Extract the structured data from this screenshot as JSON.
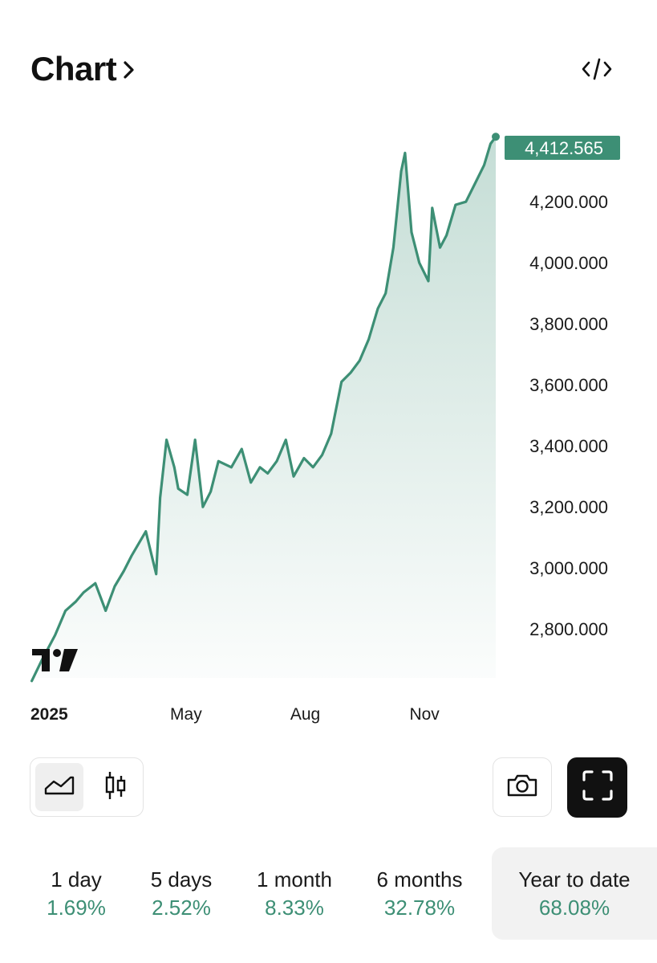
{
  "header": {
    "title": "Chart"
  },
  "icons": {
    "title_chevron": "chevron-right-icon",
    "embed": "code-embed-icon",
    "logo": "tradingview-logo",
    "area_chart": "area-chart-icon",
    "candlestick": "candlestick-icon",
    "camera": "camera-icon",
    "fullscreen": "fullscreen-icon"
  },
  "colors": {
    "line": "#3d8f75",
    "fill": "#3d8f75",
    "price_tag": "#3d8f75",
    "positive": "#3d8f75",
    "fullscreen_bg": "#111111"
  },
  "chart_data": {
    "type": "area",
    "x_tick_labels": [
      "2025",
      "May",
      "Aug",
      "Nov"
    ],
    "y_tick_labels": [
      "4,200.000",
      "4,000.000",
      "3,800.000",
      "3,600.000",
      "3,400.000",
      "3,200.000",
      "3,000.000",
      "2,800.000"
    ],
    "y_ticks": [
      4200,
      4000,
      3800,
      3600,
      3400,
      3200,
      3000,
      2800
    ],
    "ylim": [
      2640,
      4440
    ],
    "last_value_label": "4,412.565",
    "series": [
      {
        "x": [
          "2025-01-02",
          "2025-01-10",
          "2025-01-20",
          "2025-01-28",
          "2025-02-05",
          "2025-02-11",
          "2025-02-20",
          "2025-02-28",
          "2025-03-07",
          "2025-03-14",
          "2025-03-20",
          "2025-03-31",
          "2025-04-08",
          "2025-04-11",
          "2025-04-16",
          "2025-04-22",
          "2025-04-25",
          "2025-05-02",
          "2025-05-08",
          "2025-05-14",
          "2025-05-20",
          "2025-05-26",
          "2025-06-05",
          "2025-06-13",
          "2025-06-20",
          "2025-06-27",
          "2025-07-03",
          "2025-07-10",
          "2025-07-17",
          "2025-07-23",
          "2025-07-31",
          "2025-08-07",
          "2025-08-14",
          "2025-08-21",
          "2025-08-29",
          "2025-09-05",
          "2025-09-12",
          "2025-09-19",
          "2025-09-26",
          "2025-10-02",
          "2025-10-08",
          "2025-10-14",
          "2025-10-17",
          "2025-10-22",
          "2025-10-28",
          "2025-11-04",
          "2025-11-07",
          "2025-11-13",
          "2025-11-18",
          "2025-11-25",
          "2025-12-03",
          "2025-12-10",
          "2025-12-17",
          "2025-12-22",
          "2025-12-26"
        ],
        "y": [
          2630,
          2700,
          2780,
          2860,
          2890,
          2920,
          2950,
          2860,
          2940,
          2990,
          3040,
          3120,
          2980,
          3230,
          3420,
          3330,
          3260,
          3240,
          3420,
          3200,
          3250,
          3350,
          3330,
          3390,
          3280,
          3330,
          3310,
          3350,
          3420,
          3300,
          3360,
          3330,
          3370,
          3440,
          3610,
          3640,
          3680,
          3750,
          3850,
          3900,
          4050,
          4300,
          4360,
          4100,
          4000,
          3940,
          4180,
          4050,
          4090,
          4190,
          4200,
          4260,
          4320,
          4390,
          4413
        ]
      }
    ]
  },
  "periods": [
    {
      "label": "1 day",
      "change": "1.69%"
    },
    {
      "label": "5 days",
      "change": "2.52%"
    },
    {
      "label": "1 month",
      "change": "8.33%"
    },
    {
      "label": "6 months",
      "change": "32.78%"
    },
    {
      "label": "Year to date",
      "change": "68.08%",
      "active": true
    }
  ]
}
